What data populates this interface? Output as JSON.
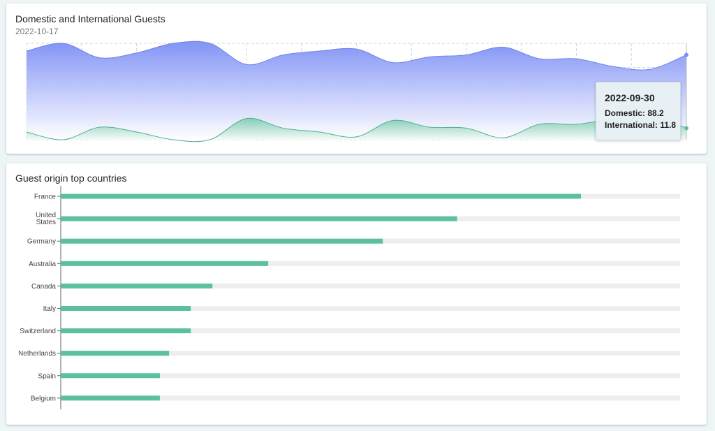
{
  "guests_card": {
    "title": "Domestic and International Guests",
    "subtitle": "2022-10-17",
    "tooltip": {
      "date": "2022-09-30",
      "domestic_label": "Domestic:",
      "domestic_value": "88.2",
      "international_label": "International:",
      "international_value": "11.8"
    }
  },
  "countries_card": {
    "title": "Guest origin top countries"
  },
  "colors": {
    "domestic": "#7b8ef5",
    "international": "#5fbf9f",
    "bar": "#5bc0a0",
    "bar_track": "#eeeeee"
  },
  "chart_data": [
    {
      "type": "area",
      "title": "Domestic and International Guests",
      "subtitle": "2022-10-17",
      "y_range": [
        0,
        100
      ],
      "grid": true,
      "series": [
        {
          "name": "Domestic",
          "values": [
            92,
            100,
            85,
            90,
            100,
            100,
            78,
            88,
            92,
            94,
            80,
            86,
            88,
            96,
            84,
            84,
            76,
            73,
            88
          ]
        },
        {
          "name": "International",
          "values": [
            8,
            0,
            13,
            8,
            0,
            0,
            22,
            12,
            8,
            3,
            20,
            13,
            12,
            2,
            16,
            16,
            22,
            26,
            12
          ]
        }
      ],
      "tooltip": {
        "date": "2022-09-30",
        "Domestic": 88.2,
        "International": 11.8
      }
    },
    {
      "type": "bar",
      "orientation": "horizontal",
      "title": "Guest origin top countries",
      "categories": [
        "France",
        "United States",
        "Germany",
        "Australia",
        "Canada",
        "Italy",
        "Switzerland",
        "Netherlands",
        "Spain",
        "Belgium"
      ],
      "values": [
        84,
        64,
        52,
        33.5,
        24.5,
        21,
        21,
        17.5,
        16,
        16
      ],
      "xlim": [
        0,
        100
      ]
    }
  ]
}
